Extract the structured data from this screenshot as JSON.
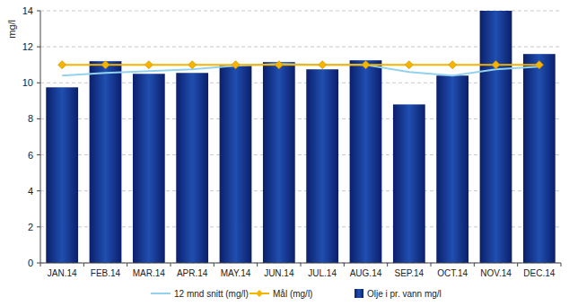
{
  "chart_data": {
    "type": "bar",
    "y_label": "mg/l",
    "categories": [
      "JAN.14",
      "FEB.14",
      "MAR.14",
      "APR.14",
      "MAY.14",
      "JUN.14",
      "JUL.14",
      "AUG.14",
      "SEP.14",
      "OCT.14",
      "NOV.14",
      "DEC.14"
    ],
    "series": [
      {
        "name": "12 mnd snitt (mg/l)",
        "type": "line",
        "color": "#92d2ee",
        "marker": "none",
        "line_style": "solid",
        "values": [
          10.4,
          10.55,
          10.65,
          10.75,
          10.95,
          11.05,
          11.0,
          11.0,
          10.6,
          10.4,
          10.75,
          10.9
        ]
      },
      {
        "name": "Mål (mg/l)",
        "type": "line",
        "color": "#f5b400",
        "marker": "diamond",
        "line_style": "solid",
        "values": [
          11,
          11,
          11,
          11,
          11,
          11,
          11,
          11,
          11,
          11,
          11,
          11
        ]
      },
      {
        "name": "Olje i pr. vann mg/l",
        "type": "bar",
        "color": "#0b1f6b",
        "values": [
          9.75,
          11.2,
          10.5,
          10.55,
          10.95,
          11.15,
          10.75,
          11.25,
          8.8,
          10.4,
          14,
          11.6
        ]
      }
    ],
    "ylim": [
      0,
      14
    ],
    "yticks": [
      0,
      2,
      4,
      6,
      8,
      10,
      12,
      14
    ],
    "grid": true,
    "legend": "bottom"
  }
}
